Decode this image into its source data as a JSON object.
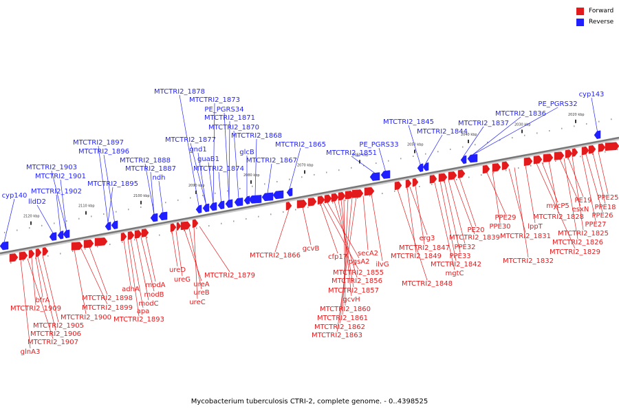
{
  "legend": {
    "forward_label": "Forward",
    "reverse_label": "Reverse",
    "forward_color": "#e31a1c",
    "reverse_color": "#1f1fff"
  },
  "footer": "Mycobacterium tuberculosis CTRI-2, complete genome. - 0..4398525",
  "scale_labels": [
    "2120 kbp",
    "2110 kbp",
    "2100 kbp",
    "2090 kbp",
    "2080 kbp",
    "2070 kbp",
    "2060 kbp",
    "2050 kbp",
    "2040 kbp",
    "2030 kbp",
    "2020 kbp"
  ],
  "reverse_genes": [
    "cyp140",
    "lldD2",
    "MTCTRI2_1902",
    "MTCTRI2_1901",
    "MTCTRI2_1903",
    "MTCTRI2_1895",
    "MTCTRI2_1896",
    "MTCTRI2_1897",
    "ndh",
    "MTCTRI2_1887",
    "MTCTRI2_1888",
    "MTCTRI2_1878",
    "MTCTRI2_1877",
    "gnd1",
    "guaB1",
    "MTCTRI2_1874",
    "MTCTRI2_1873",
    "PE_PGRS34",
    "MTCTRI2_1871",
    "MTCTRI2_1870",
    "MTCTRI2_1868",
    "glcB",
    "MTCTRI2_1867",
    "MTCTRI2_1865",
    "MTCTRI2_1851",
    "PE_PGRS33",
    "MTCTRI2_1845",
    "MTCTRI2_1844",
    "MTCTRI2_1837",
    "MTCTRI2_1836",
    "PE_PGRS32",
    "cyp143"
  ],
  "forward_genes": [
    "bfrA",
    "MTCTRI2_1909",
    "MTCTRI2_1905",
    "MTCTRI2_1906",
    "MTCTRI2_1907",
    "glnA3",
    "MTCTRI2_1898",
    "MTCTRI2_1899",
    "MTCTRI2_1900",
    "adhA",
    "apa",
    "modC",
    "modB",
    "modA",
    "MTCTRI2_1893",
    "ureD",
    "ureG",
    "ureA",
    "ureB",
    "ureC",
    "MTCTRI2_1879",
    "MTCTRI2_1866",
    "gcvB",
    "cfp17",
    "pgsA2",
    "MTCTRI2_1855",
    "MTCTRI2_1856",
    "MTCTRI2_1857",
    "gcvH",
    "MTCTRI2_1860",
    "MTCTRI2_1861",
    "MTCTRI2_1862",
    "MTCTRI2_1863",
    "secA2",
    "ilvG",
    "erg3",
    "MTCTRI2_1847",
    "MTCTRI2_1849",
    "MTCTRI2_1848",
    "PE20",
    "MTCTRI2_1839",
    "PPE32",
    "PPE33",
    "MTCTRI2_1842",
    "mgtC",
    "PPE29",
    "PPE30",
    "lppT",
    "MTCTRI2_1831",
    "MTCTRI2_1832",
    "mycP5",
    "MTCTRI2_1828",
    "MTCTRI2_1829",
    "PE19",
    "esxN",
    "MTCTRI2_1825",
    "MTCTRI2_1826",
    "PPE25",
    "PPE18",
    "PPE26",
    "PPE27"
  ]
}
